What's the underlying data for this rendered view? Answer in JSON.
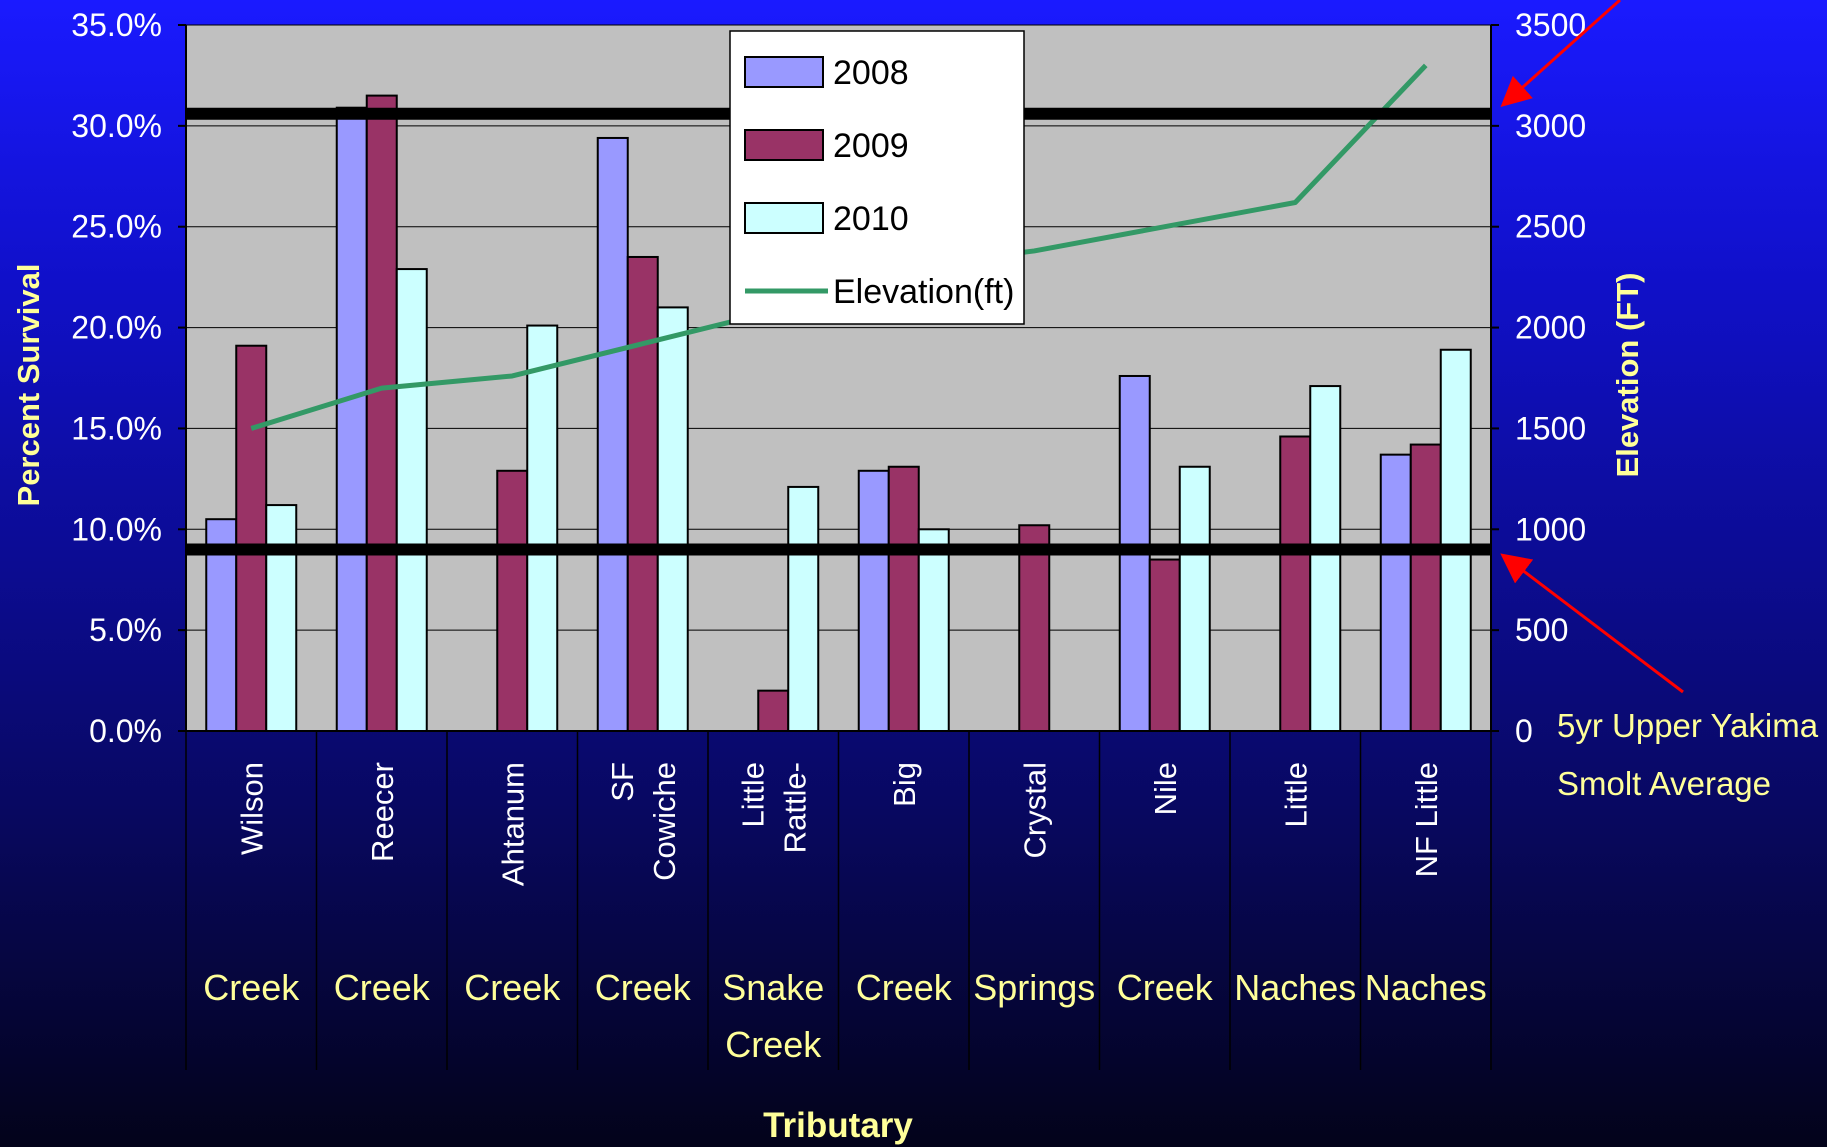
{
  "chart_data": {
    "type": "bar",
    "categories": [
      {
        "top": [
          "Wilson"
        ],
        "bottom": [
          "Creek"
        ]
      },
      {
        "top": [
          "Reecer"
        ],
        "bottom": [
          "Creek"
        ]
      },
      {
        "top": [
          "Ahtanum"
        ],
        "bottom": [
          "Creek"
        ]
      },
      {
        "top": [
          "SF",
          "Cowiche"
        ],
        "bottom": [
          "Creek"
        ]
      },
      {
        "top": [
          "Little",
          "Rattle-"
        ],
        "bottom": [
          "Snake",
          "Creek"
        ]
      },
      {
        "top": [
          "Big"
        ],
        "bottom": [
          "Creek"
        ]
      },
      {
        "top": [
          "Crystal"
        ],
        "bottom": [
          "Springs"
        ]
      },
      {
        "top": [
          "Nile"
        ],
        "bottom": [
          "Creek"
        ]
      },
      {
        "top": [
          "Little"
        ],
        "bottom": [
          "Naches"
        ]
      },
      {
        "top": [
          "NF Little"
        ],
        "bottom": [
          "Naches"
        ]
      }
    ],
    "series": [
      {
        "name": "2008",
        "color": "#9999ff",
        "values": [
          10.5,
          30.9,
          null,
          29.4,
          null,
          12.9,
          null,
          17.6,
          null,
          13.7
        ]
      },
      {
        "name": "2009",
        "color": "#993366",
        "values": [
          19.1,
          31.5,
          12.9,
          23.5,
          2.0,
          13.1,
          10.2,
          8.5,
          14.6,
          14.2
        ]
      },
      {
        "name": "2010",
        "color": "#ccffff",
        "values": [
          11.2,
          22.9,
          20.1,
          21.0,
          12.1,
          10.0,
          null,
          13.1,
          17.1,
          18.9
        ]
      }
    ],
    "line_series": {
      "name": "Elevation(ft)",
      "color": "#339966",
      "axis": "right",
      "values": [
        1500,
        1700,
        1760,
        1920,
        2080,
        2300,
        2380,
        2500,
        2620,
        3300
      ]
    },
    "y_left": {
      "label": "Percent Survival",
      "min": 0,
      "max": 35,
      "step": 5,
      "tick_labels": [
        "0.0%",
        "5.0%",
        "10.0%",
        "15.0%",
        "20.0%",
        "25.0%",
        "30.0%",
        "35.0%"
      ]
    },
    "y_right": {
      "label": "Elevation (FT)",
      "min": 0,
      "max": 3500,
      "step": 500,
      "tick_labels": [
        "0",
        "500",
        "1000",
        "1500",
        "2000",
        "2500",
        "3000",
        "3500"
      ]
    },
    "xlabel": "Tributary",
    "reference_lines": [
      {
        "axis": "right",
        "value": 3060
      },
      {
        "axis": "right",
        "value": 900
      }
    ],
    "annotation": {
      "lines": [
        "5yr Upper Yakima",
        "Smolt Average"
      ]
    },
    "legend": {
      "position": "top-center",
      "entries": [
        "2008",
        "2009",
        "2010",
        "Elevation(ft)"
      ]
    },
    "grid": true,
    "plot_background": "#c0c0c0"
  }
}
